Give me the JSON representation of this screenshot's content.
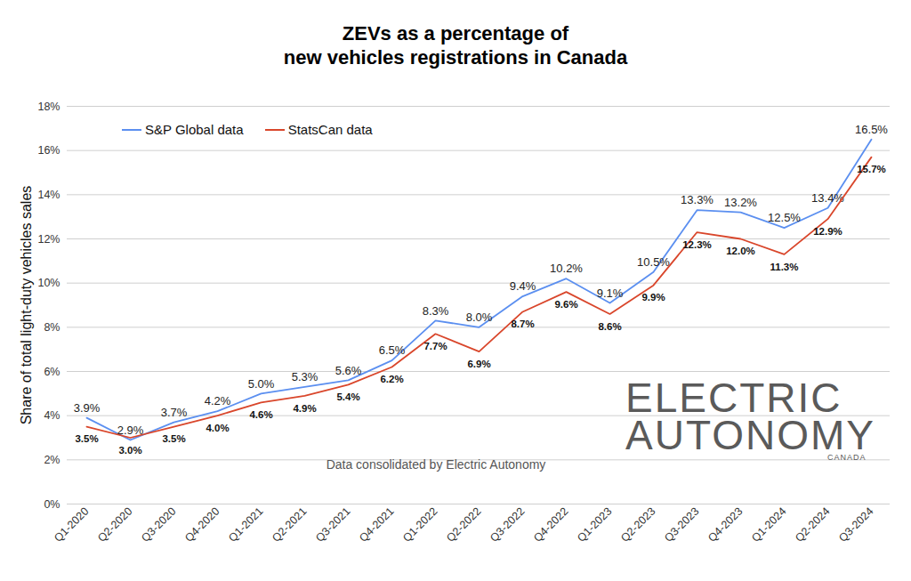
{
  "chart_data": {
    "type": "line",
    "title": "ZEVs as a percentage of\nnew vehicles registrations in Canada",
    "y_label": "Share of total light-duty vehicles sales",
    "categories": [
      "Q1-2020",
      "Q2-2020",
      "Q3-2020",
      "Q4-2020",
      "Q1-2021",
      "Q2-2021",
      "Q3-2021",
      "Q4-2021",
      "Q1-2022",
      "Q2-2022",
      "Q3-2022",
      "Q4-2022",
      "Q1-2023",
      "Q2-2023",
      "Q3-2023",
      "Q4-2023",
      "Q1-2024",
      "Q2-2024",
      "Q3-2024"
    ],
    "series": [
      {
        "name": "S&P Global data",
        "color": "#5b8ff0",
        "values": [
          3.9,
          2.9,
          3.7,
          4.2,
          5.0,
          5.3,
          5.6,
          6.5,
          8.3,
          8.0,
          9.4,
          10.2,
          9.1,
          10.5,
          13.3,
          13.2,
          12.5,
          13.4,
          16.5
        ],
        "value_labels": [
          "3.9%",
          "2.9%",
          "3.7%",
          "4.2%",
          "5.0%",
          "5.3%",
          "5.6%",
          "6.5%",
          "8.3%",
          "8.0%",
          "9.4%",
          "10.2%",
          "9.1%",
          "10.5%",
          "13.3%",
          "13.2%",
          "12.5%",
          "13.4%",
          "16.5%"
        ]
      },
      {
        "name": "StatsCan data",
        "color": "#d9462b",
        "values": [
          3.5,
          3.0,
          3.5,
          4.0,
          4.6,
          4.9,
          5.4,
          6.2,
          7.7,
          6.9,
          8.7,
          9.6,
          8.6,
          9.9,
          12.3,
          12.0,
          11.3,
          12.9,
          15.7
        ],
        "value_labels": [
          "3.5%",
          "3.0%",
          "3.5%",
          "4.0%",
          "4.6%",
          "4.9%",
          "5.4%",
          "6.2%",
          "7.7%",
          "6.9%",
          "8.7%",
          "9.6%",
          "8.6%",
          "9.9%",
          "12.3%",
          "12.0%",
          "11.3%",
          "12.9%",
          "15.7%"
        ]
      }
    ],
    "ylim": [
      0,
      18
    ],
    "yticks": [
      {
        "value": 0,
        "label": "0%"
      },
      {
        "value": 2,
        "label": "2%"
      },
      {
        "value": 4,
        "label": "4%"
      },
      {
        "value": 6,
        "label": "6%"
      },
      {
        "value": 8,
        "label": "8%"
      },
      {
        "value": 10,
        "label": "10%"
      },
      {
        "value": 12,
        "label": "12%"
      },
      {
        "value": 14,
        "label": "14%"
      },
      {
        "value": 16,
        "label": "16%"
      },
      {
        "value": 18,
        "label": "18%"
      }
    ],
    "grid": true,
    "legend": "top-left",
    "data_labels": true,
    "annotations": [
      "Data consolidated by Electric Autonomy",
      "ELECTRIC",
      "AUTONOMY",
      "CANADA"
    ]
  }
}
